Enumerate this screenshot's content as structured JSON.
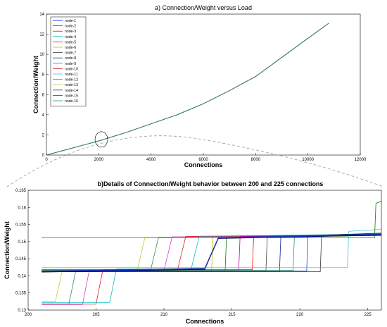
{
  "chart_data": [
    {
      "type": "line",
      "title": "a) Connection/Weight  versus Load",
      "xlabel": "Connections",
      "ylabel": "Connection/Weight",
      "xlim": [
        0,
        12000
      ],
      "ylim": [
        0,
        14
      ],
      "xticks": [
        0,
        2000,
        4000,
        6000,
        8000,
        10000,
        12000
      ],
      "yticks": [
        0,
        2,
        4,
        6,
        8,
        10,
        12,
        14
      ],
      "grid": false,
      "legend_position": "top-left",
      "series": [
        {
          "name": "node-1",
          "color": "#0000ff"
        },
        {
          "name": "node-2",
          "color": "#008000"
        },
        {
          "name": "node-3",
          "color": "#ff0000"
        },
        {
          "name": "node-4",
          "color": "#00bfbf"
        },
        {
          "name": "node-5",
          "color": "#bf00bf"
        },
        {
          "name": "node-6",
          "color": "#bfbf00"
        },
        {
          "name": "node-7",
          "color": "#404040"
        },
        {
          "name": "node-8",
          "color": "#0a2a8a"
        },
        {
          "name": "node-9",
          "color": "#2e8b57"
        },
        {
          "name": "node-10",
          "color": "#e0202a"
        },
        {
          "name": "node-11",
          "color": "#40c8e0"
        },
        {
          "name": "node-12",
          "color": "#d040d0"
        },
        {
          "name": "node-13",
          "color": "#c8c830"
        },
        {
          "name": "node-14",
          "color": "#303030"
        },
        {
          "name": "node-15",
          "color": "#2040c0"
        },
        {
          "name": "node-16",
          "color": "#30a050"
        }
      ],
      "curve": {
        "x": [
          0,
          1000,
          2000,
          3000,
          4000,
          5000,
          6000,
          7000,
          8000,
          9000,
          10000,
          10800
        ],
        "y": [
          0,
          0.7,
          1.4,
          2.2,
          3.1,
          4.0,
          5.1,
          6.4,
          7.8,
          9.7,
          11.6,
          13.1
        ]
      }
    },
    {
      "type": "line",
      "title": "b)Details of Connection/Weight behavior between 200 and 225 connections",
      "xlabel": "Connections",
      "ylabel": "Connection/Weight",
      "xlim": [
        200,
        226
      ],
      "ylim": [
        0.13,
        0.165
      ],
      "xticks": [
        200,
        205,
        210,
        215,
        220,
        225
      ],
      "yticks": [
        0.13,
        0.135,
        0.14,
        0.145,
        0.15,
        0.155,
        0.16,
        0.165
      ],
      "ytick_labels": [
        "0.13",
        "0.135",
        "0.14",
        "0.145",
        "0.15",
        "0.155",
        "0.16",
        "0.165"
      ],
      "grid": false,
      "series": [
        {
          "name": "node-1",
          "color": "#0000ff"
        },
        {
          "name": "node-2",
          "color": "#008000"
        },
        {
          "name": "node-3",
          "color": "#ff0000"
        },
        {
          "name": "node-4",
          "color": "#00bfbf"
        },
        {
          "name": "node-5",
          "color": "#bf00bf"
        },
        {
          "name": "node-6",
          "color": "#bfbf00"
        },
        {
          "name": "node-7",
          "color": "#404040"
        },
        {
          "name": "node-8",
          "color": "#0a2a8a"
        },
        {
          "name": "node-9",
          "color": "#2e8b57"
        },
        {
          "name": "node-10",
          "color": "#e0202a"
        },
        {
          "name": "node-11",
          "color": "#40c8e0"
        },
        {
          "name": "node-12",
          "color": "#d040d0"
        },
        {
          "name": "node-13",
          "color": "#c8c830"
        },
        {
          "name": "node-14",
          "color": "#303030"
        },
        {
          "name": "node-15",
          "color": "#2040c0"
        },
        {
          "name": "node-16",
          "color": "#30a050"
        }
      ],
      "step_series": [
        {
          "color": "#c8c830",
          "start": 0.1325,
          "jump_x": 202,
          "hold": 0.1412,
          "jump2_x": 208,
          "end": 0.1512
        },
        {
          "color": "#2e8b57",
          "start": 0.1318,
          "jump_x": 203,
          "hold": 0.1414,
          "jump2_x": 209,
          "end": 0.1513
        },
        {
          "color": "#d040d0",
          "start": 0.1316,
          "jump_x": 204,
          "hold": 0.1416,
          "jump2_x": 210,
          "end": 0.1514
        },
        {
          "color": "#e0202a",
          "start": 0.1318,
          "jump_x": 205,
          "hold": 0.1418,
          "jump2_x": 211,
          "end": 0.1515
        },
        {
          "color": "#00bfbf",
          "start": 0.1322,
          "jump_x": 206,
          "hold": 0.142,
          "jump2_x": 212,
          "end": 0.1516
        },
        {
          "color": "#bfbf00",
          "start": 0.1412,
          "jump_x": 213,
          "hold": 0.1412,
          "jump2_x": 213,
          "end": 0.1512
        },
        {
          "color": "#008000",
          "start": 0.1414,
          "jump_x": 214,
          "hold": 0.1414,
          "jump2_x": 214,
          "end": 0.1512
        },
        {
          "color": "#bf00bf",
          "start": 0.1416,
          "jump_x": 215,
          "hold": 0.1416,
          "jump2_x": 215,
          "end": 0.1515
        },
        {
          "color": "#ff0000",
          "start": 0.1418,
          "jump_x": 216,
          "hold": 0.1418,
          "jump2_x": 216,
          "end": 0.1514
        },
        {
          "color": "#404040",
          "start": 0.1414,
          "jump_x": 217,
          "hold": 0.1414,
          "jump2_x": 217,
          "end": 0.1513
        },
        {
          "color": "#0a2a8a",
          "start": 0.1412,
          "jump_x": 218,
          "hold": 0.1412,
          "jump2_x": 218,
          "end": 0.1515
        },
        {
          "color": "#30a050",
          "start": 0.1416,
          "jump_x": 219,
          "hold": 0.1416,
          "jump2_x": 219,
          "end": 0.1516
        },
        {
          "color": "#2040c0",
          "start": 0.1414,
          "jump_x": 220,
          "hold": 0.1414,
          "jump2_x": 220,
          "end": 0.1518
        },
        {
          "color": "#303030",
          "start": 0.1412,
          "jump_x": 221,
          "hold": 0.1412,
          "jump2_x": 221,
          "end": 0.1519
        },
        {
          "color": "#40c8e0",
          "start": 0.1424,
          "jump_x": 223,
          "hold": 0.1424,
          "jump2_x": 223,
          "end": 0.153
        },
        {
          "color": "#008000",
          "start": 0.1512,
          "jump_x": 225,
          "hold": 0.1512,
          "jump2_x": 225,
          "end": 0.1612
        }
      ]
    }
  ]
}
